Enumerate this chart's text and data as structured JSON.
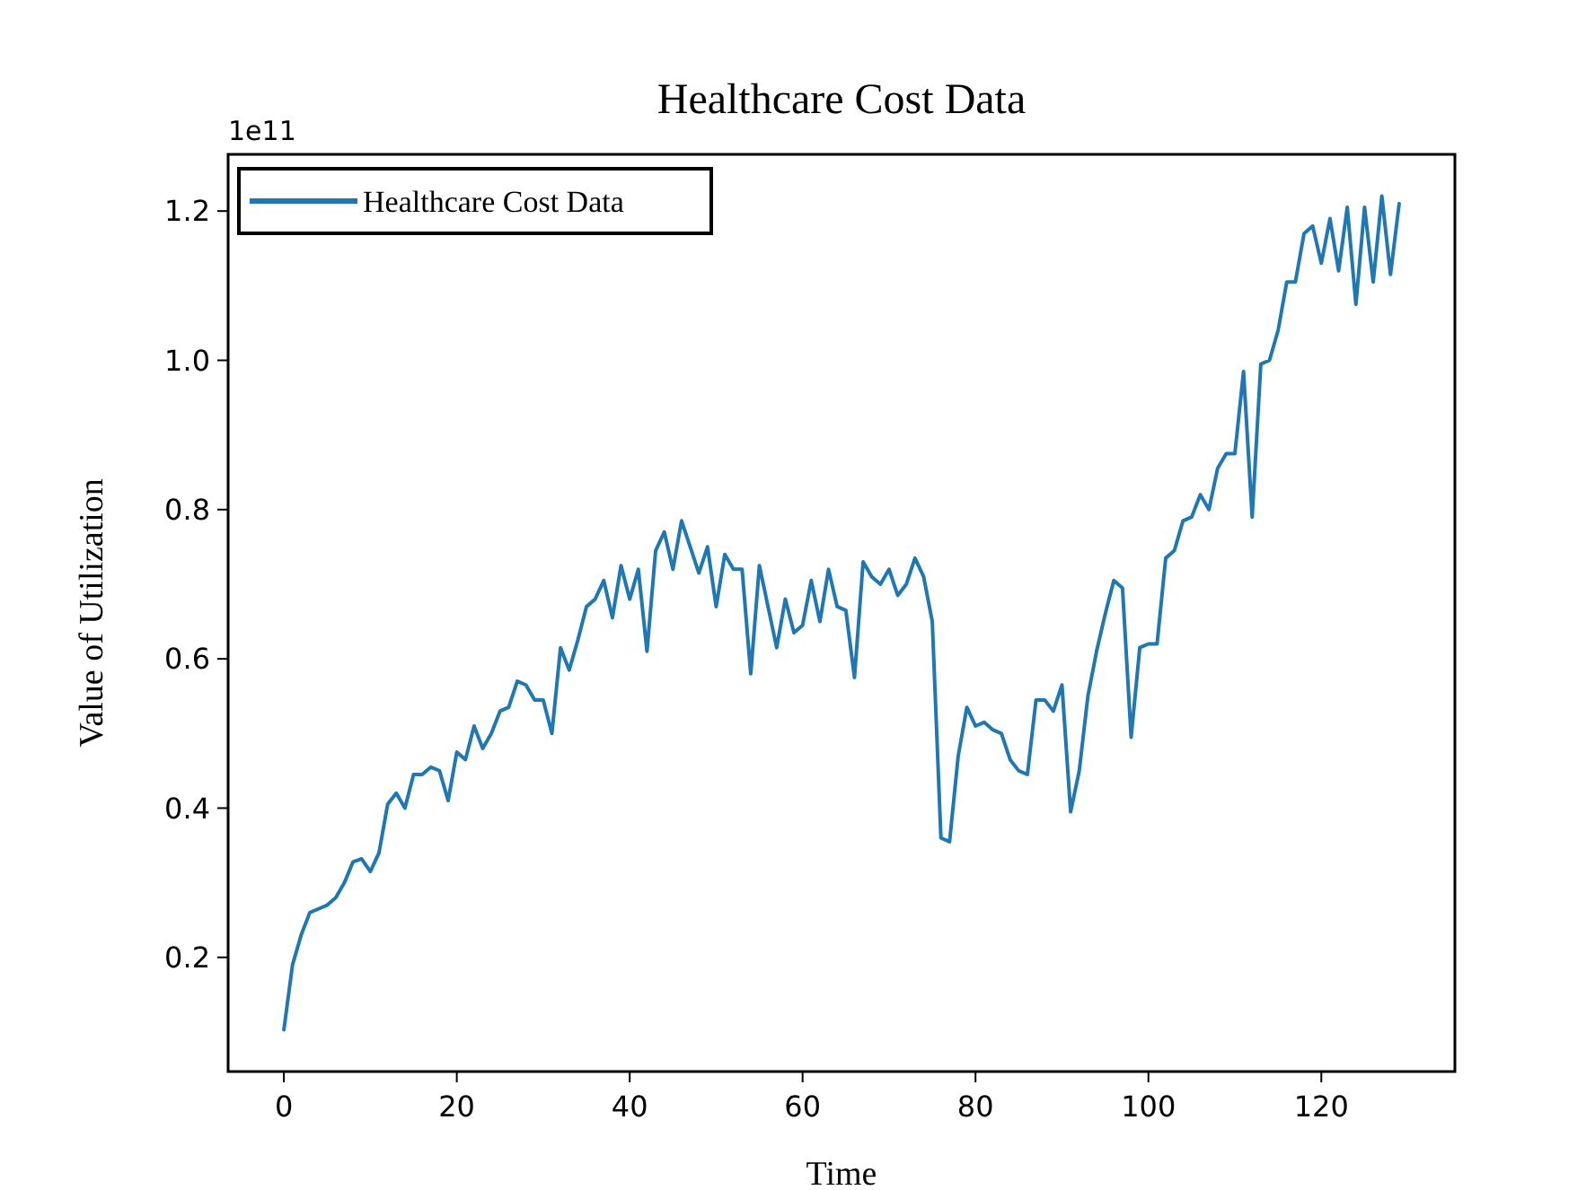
{
  "chart_data": {
    "type": "line",
    "title": "Healthcare Cost Data",
    "xlabel": "Time",
    "ylabel": "Value of Utilization",
    "annotations": [
      "1e11"
    ],
    "x": [
      0,
      1,
      2,
      3,
      4,
      5,
      6,
      7,
      8,
      9,
      10,
      11,
      12,
      13,
      14,
      15,
      16,
      17,
      18,
      19,
      20,
      21,
      22,
      23,
      24,
      25,
      26,
      27,
      28,
      29,
      30,
      31,
      32,
      33,
      34,
      35,
      36,
      37,
      38,
      39,
      40,
      41,
      42,
      43,
      44,
      45,
      46,
      47,
      48,
      49,
      50,
      51,
      52,
      53,
      54,
      55,
      56,
      57,
      58,
      59,
      60,
      61,
      62,
      63,
      64,
      65,
      66,
      67,
      68,
      69,
      70,
      71,
      72,
      73,
      74,
      75,
      76,
      77,
      78,
      79,
      80,
      81,
      82,
      83,
      84,
      85,
      86,
      87,
      88,
      89,
      90,
      91,
      92,
      93,
      94,
      95,
      96,
      97,
      98,
      99,
      100,
      101,
      102,
      103,
      104,
      105,
      106,
      107,
      108,
      109,
      110,
      111,
      112,
      113,
      114,
      115,
      116,
      117,
      118,
      119,
      120,
      121,
      122,
      123,
      124,
      125,
      126,
      127,
      128,
      129
    ],
    "series": [
      {
        "name": "Healthcare Cost Data",
        "color": "#1f77b4",
        "values": [
          0.103,
          0.19,
          0.23,
          0.26,
          0.265,
          0.27,
          0.28,
          0.3,
          0.328,
          0.332,
          0.315,
          0.34,
          0.405,
          0.42,
          0.4,
          0.445,
          0.445,
          0.455,
          0.45,
          0.41,
          0.475,
          0.465,
          0.51,
          0.48,
          0.5,
          0.53,
          0.535,
          0.57,
          0.565,
          0.545,
          0.545,
          0.5,
          0.615,
          0.585,
          0.625,
          0.67,
          0.68,
          0.705,
          0.655,
          0.725,
          0.68,
          0.72,
          0.61,
          0.745,
          0.77,
          0.72,
          0.785,
          0.75,
          0.715,
          0.75,
          0.67,
          0.74,
          0.72,
          0.72,
          0.58,
          0.725,
          0.67,
          0.615,
          0.68,
          0.635,
          0.645,
          0.705,
          0.65,
          0.72,
          0.67,
          0.665,
          0.575,
          0.73,
          0.71,
          0.7,
          0.72,
          0.685,
          0.7,
          0.735,
          0.71,
          0.65,
          0.36,
          0.355,
          0.47,
          0.535,
          0.51,
          0.515,
          0.505,
          0.5,
          0.465,
          0.45,
          0.445,
          0.545,
          0.545,
          0.53,
          0.565,
          0.395,
          0.45,
          0.55,
          0.61,
          0.66,
          0.705,
          0.695,
          0.495,
          0.615,
          0.62,
          0.62,
          0.735,
          0.745,
          0.785,
          0.79,
          0.82,
          0.8,
          0.855,
          0.875,
          0.875,
          0.985,
          0.79,
          0.995,
          1.0,
          1.04,
          1.105,
          1.105,
          1.17,
          1.18,
          1.13,
          1.19,
          1.12,
          1.205,
          1.075,
          1.205,
          1.105,
          1.22,
          1.115,
          1.21
        ]
      }
    ],
    "xlim": [
      -6.45,
      135.45
    ],
    "xticks": [
      0,
      20,
      40,
      60,
      80,
      100,
      120
    ],
    "ylim": [
      0.047,
      1.276
    ],
    "yticks": [
      0.2,
      0.4,
      0.6,
      0.8,
      {
        "value": 1,
        "label": "1.0"
      },
      1.2
    ],
    "grid": false,
    "legend": "top left",
    "marker": "none",
    "line_style": "solid"
  }
}
